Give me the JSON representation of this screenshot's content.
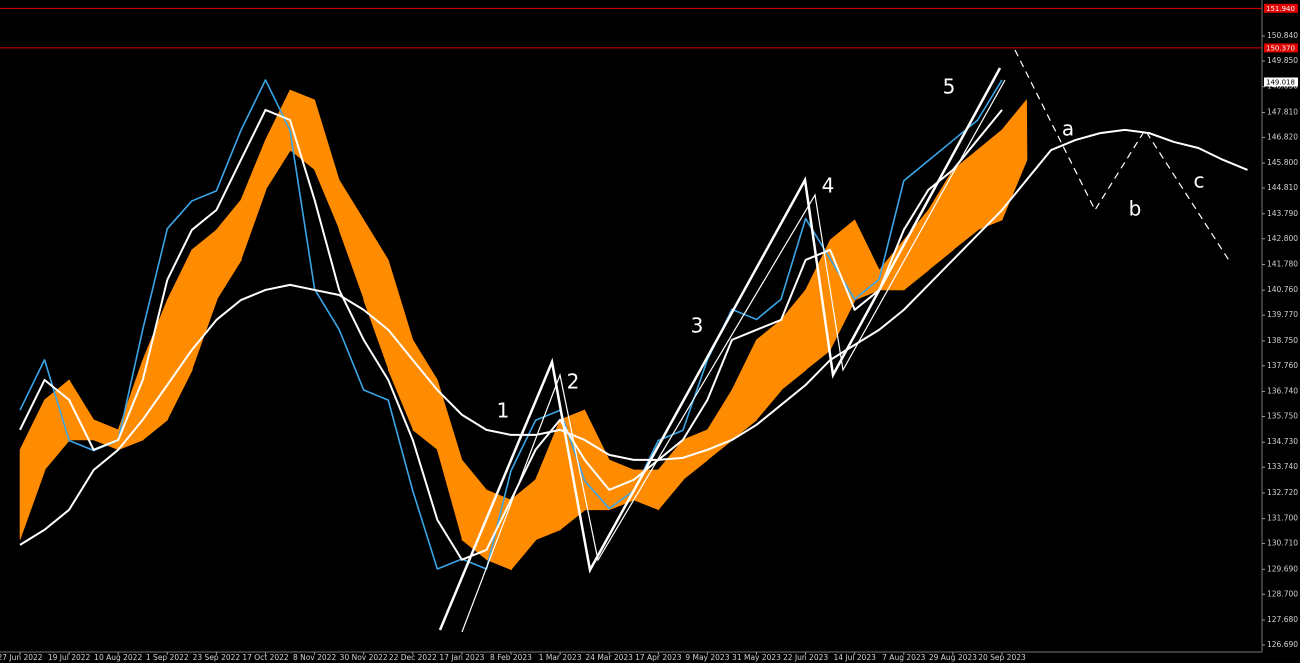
{
  "chart_data": {
    "type": "line",
    "categories": [
      "27 Jun 2022",
      null,
      "19 Jul 2022",
      null,
      "10 Aug 2022",
      null,
      "1 Sep 2022",
      null,
      "23 Sep 2022",
      null,
      "17 Oct 2022",
      null,
      "8 Nov 2022",
      null,
      "30 Nov 2022",
      null,
      "22 Dec 2022",
      null,
      "17 Jan 2023",
      null,
      "8 Feb 2023",
      null,
      "1 Mar 2023",
      null,
      "24 Mar 2023",
      null,
      "17 Apr 2023",
      null,
      "9 May 2023",
      null,
      "31 May 2023",
      null,
      "22 Jun 2023",
      null,
      "14 Jul 2023",
      null,
      "7 Aug 2023",
      null,
      "29 Aug 2023",
      null,
      "20 Sep 2023",
      null,
      null,
      null,
      null,
      null,
      null,
      null,
      null,
      null,
      null
    ],
    "series": [
      {
        "color": "#3aa6e8",
        "values": [
          136.0,
          138.0,
          134.8,
          134.4,
          134.8,
          139.2,
          143.2,
          144.3,
          144.7,
          147.1,
          149.1,
          147.1,
          140.8,
          139.2,
          136.8,
          136.4,
          132.8,
          129.7,
          130.1,
          129.7,
          133.6,
          135.6,
          136.0,
          133.2,
          132.1,
          132.8,
          134.8,
          135.2,
          138.0,
          140.0,
          139.6,
          140.4,
          143.6,
          142.0,
          140.4,
          141.2,
          145.1,
          145.9,
          146.7,
          147.5,
          149.1,
          null,
          null,
          null,
          null,
          null,
          null,
          null,
          null,
          null,
          null
        ]
      },
      {
        "color": "#ffffff",
        "values": [
          135.22,
          137.2,
          136.41,
          134.43,
          134.82,
          137.2,
          141.17,
          143.15,
          143.94,
          145.93,
          147.91,
          147.51,
          144.34,
          140.77,
          138.79,
          137.2,
          134.82,
          131.65,
          130.07,
          130.46,
          132.44,
          134.43,
          135.62,
          134.03,
          132.84,
          133.24,
          134.03,
          134.82,
          136.41,
          138.79,
          139.19,
          139.58,
          141.96,
          142.36,
          139.98,
          140.77,
          143.15,
          144.74,
          145.53,
          146.72,
          147.91,
          null,
          null,
          null,
          null,
          null,
          null,
          null,
          null,
          null,
          null
        ]
      },
      {
        "color": "#ffffff",
        "values": [
          130.66,
          131.26,
          132.05,
          133.63,
          134.43,
          135.62,
          137.0,
          138.39,
          139.58,
          140.37,
          140.77,
          140.97,
          140.77,
          140.57,
          139.98,
          139.19,
          137.99,
          136.8,
          135.82,
          135.22,
          135.02,
          135.02,
          135.22,
          134.82,
          134.23,
          134.03,
          134.03,
          134.11,
          134.43,
          134.82,
          135.42,
          136.21,
          137.0,
          137.99,
          138.59,
          139.19,
          139.98,
          140.97,
          141.96,
          142.95,
          143.94,
          145.13,
          146.32,
          146.72,
          146.99,
          147.12,
          146.99,
          146.64,
          146.4,
          145.93,
          145.53
        ]
      }
    ],
    "cloud": {
      "color": "#ff8c00",
      "top": [
        134.43,
        136.41,
        137.2,
        135.62,
        135.22,
        137.99,
        140.37,
        142.36,
        143.15,
        144.34,
        146.72,
        148.7,
        148.31,
        145.13,
        143.55,
        141.96,
        138.79,
        137.2,
        134.03,
        132.84,
        132.44,
        133.24,
        135.62,
        136.01,
        134.03,
        133.63,
        133.63,
        134.82,
        135.22,
        136.8,
        138.79,
        139.58,
        140.77,
        142.75,
        143.55,
        141.56,
        142.75,
        143.94,
        145.53,
        146.32,
        147.12,
        148.31,
        null,
        null,
        null,
        null,
        null,
        null,
        null,
        null,
        null
      ],
      "bottom": [
        130.86,
        133.63,
        134.82,
        134.82,
        134.43,
        134.82,
        135.62,
        137.6,
        140.37,
        141.96,
        144.74,
        146.32,
        145.53,
        143.15,
        140.37,
        137.6,
        135.22,
        134.43,
        130.86,
        130.07,
        129.67,
        130.86,
        131.26,
        132.05,
        132.05,
        132.44,
        132.05,
        133.24,
        134.03,
        134.82,
        135.62,
        136.8,
        137.6,
        138.39,
        140.37,
        140.77,
        140.77,
        141.56,
        142.36,
        143.15,
        143.55,
        145.93,
        null,
        null,
        null,
        null,
        null,
        null,
        null,
        null,
        null
      ]
    },
    "ylim": [
      126.41,
      152.27
    ],
    "yticks": [
      {
        "value": 150.84,
        "label": "150.840"
      },
      {
        "value": 149.85,
        "label": "149.850"
      },
      {
        "value": 148.83,
        "label": "148.830"
      },
      {
        "value": 147.81,
        "label": "147.810"
      },
      {
        "value": 146.82,
        "label": "146.820"
      },
      {
        "value": 145.8,
        "label": "145.800"
      },
      {
        "value": 144.81,
        "label": "144.810"
      },
      {
        "value": 143.79,
        "label": "143.790"
      },
      {
        "value": 142.8,
        "label": "142.800"
      },
      {
        "value": 141.78,
        "label": "141.780"
      },
      {
        "value": 140.76,
        "label": "140.760"
      },
      {
        "value": 139.77,
        "label": "139.770"
      },
      {
        "value": 138.75,
        "label": "138.750"
      },
      {
        "value": 137.76,
        "label": "137.760"
      },
      {
        "value": 136.74,
        "label": "136.740"
      },
      {
        "value": 135.75,
        "label": "135.750"
      },
      {
        "value": 134.73,
        "label": "134.730"
      },
      {
        "value": 133.74,
        "label": "133.740"
      },
      {
        "value": 132.72,
        "label": "132.720"
      },
      {
        "value": 131.7,
        "label": "131.700"
      },
      {
        "value": 130.71,
        "label": "130.710"
      },
      {
        "value": 129.69,
        "label": "129.690"
      },
      {
        "value": 128.7,
        "label": "128.700"
      },
      {
        "value": 127.68,
        "label": "127.680"
      },
      {
        "value": 126.69,
        "label": "126.690"
      }
    ],
    "hlines": [
      {
        "value": 151.94,
        "label": "151.940",
        "color": "#e00000",
        "line": true
      },
      {
        "value": 150.37,
        "label": "150.370",
        "color": "#e00000",
        "line": true
      },
      {
        "value": 149.018,
        "label": "149.018",
        "color": "#ffffff",
        "line": false
      }
    ],
    "annotations": [
      "1",
      "2",
      "3",
      "4",
      "5",
      "a",
      "b",
      "c"
    ]
  }
}
